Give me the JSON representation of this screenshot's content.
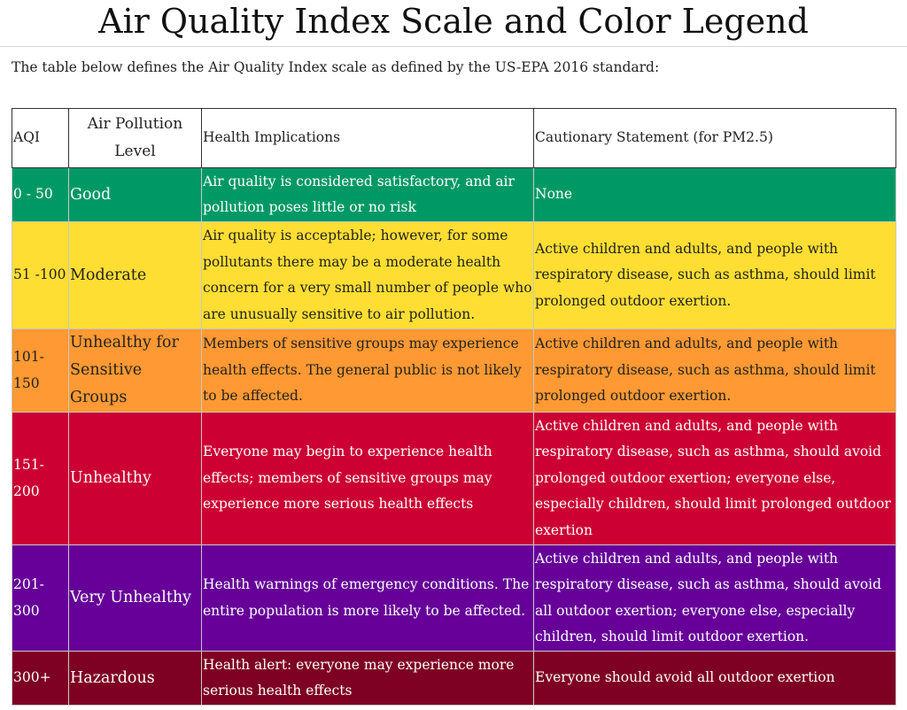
{
  "page": {
    "title": "Air Quality Index Scale and Color Legend",
    "intro": "The table below defines the Air Quality Index scale as defined by the US-EPA 2016 standard:"
  },
  "table": {
    "headers": {
      "aqi": "AQI",
      "level": "Air Pollution Level",
      "health": "Health Implications",
      "caution": "Cautionary Statement (for PM2.5)"
    },
    "rows": [
      {
        "aqi": "0 - 50",
        "level": "Good",
        "health": "Air quality is considered satisfactory, and air pollution poses little or no risk",
        "caution": "None",
        "color": "#009966"
      },
      {
        "aqi": "51 -100",
        "level": "Moderate",
        "health": "Air quality is acceptable; however, for some pollutants there may be a moderate health concern for a very small number of people who are unusually sensitive to air pollution.",
        "caution": "Active children and adults, and people with respiratory disease, such as asthma, should limit prolonged outdoor exertion.",
        "color": "#ffde33"
      },
      {
        "aqi": "101-150",
        "level": "Unhealthy for Sensitive Groups",
        "health": "Members of sensitive groups may experience health effects. The general public is not likely to be affected.",
        "caution": "Active children and adults, and people with respiratory disease, such as asthma, should limit prolonged outdoor exertion.",
        "color": "#ff9933"
      },
      {
        "aqi": "151-200",
        "level": "Unhealthy",
        "health": "Everyone may begin to experience health effects; members of sensitive groups may experience more serious health effects",
        "caution": "Active children and adults, and people with respiratory disease, such as asthma, should avoid prolonged outdoor exertion; everyone else, especially children, should limit prolonged outdoor exertion",
        "color": "#cc0033"
      },
      {
        "aqi": "201-300",
        "level": "Very Unhealthy",
        "health": "Health warnings of emergency conditions. The entire population is more likely to be affected.",
        "caution": "Active children and adults, and people with respiratory disease, such as asthma, should avoid all outdoor exertion; everyone else, especially children, should limit outdoor exertion.",
        "color": "#660099"
      },
      {
        "aqi": "300+",
        "level": "Hazardous",
        "health": "Health alert: everyone may experience more serious health effects",
        "caution": "Everyone should avoid all outdoor exertion",
        "color": "#7e0023"
      }
    ]
  }
}
